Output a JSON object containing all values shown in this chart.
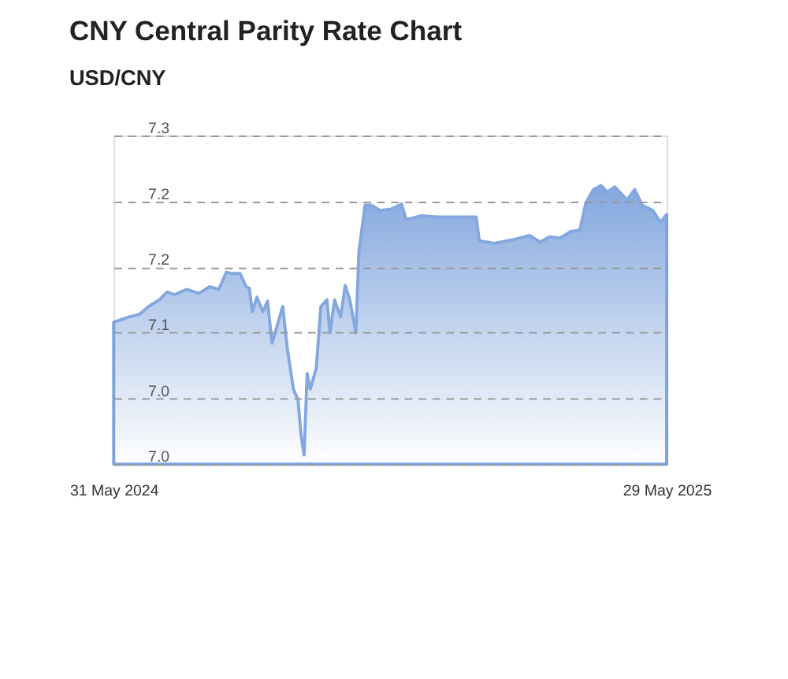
{
  "chart_data": {
    "type": "area",
    "title": "CNY Central Parity Rate Chart",
    "subtitle": "USD/CNY",
    "x": [
      "2024-05-31",
      "2024-06-10",
      "2024-06-17",
      "2024-06-23",
      "2024-06-30",
      "2024-07-05",
      "2024-07-10",
      "2024-07-18",
      "2024-07-26",
      "2024-08-02",
      "2024-08-08",
      "2024-08-13",
      "2024-08-17",
      "2024-08-22",
      "2024-08-26",
      "2024-08-28",
      "2024-08-30",
      "2024-09-02",
      "2024-09-06",
      "2024-09-09",
      "2024-09-12",
      "2024-09-16",
      "2024-09-19",
      "2024-09-22",
      "2024-09-26",
      "2024-09-29",
      "2024-10-01",
      "2024-10-03",
      "2024-10-05",
      "2024-10-07",
      "2024-10-11",
      "2024-10-14",
      "2024-10-18",
      "2024-10-20",
      "2024-10-23",
      "2024-10-27",
      "2024-10-30",
      "2024-11-02",
      "2024-11-06",
      "2024-11-08",
      "2024-11-12",
      "2024-11-16",
      "2024-11-22",
      "2024-11-29",
      "2024-12-06",
      "2024-12-09",
      "2024-12-19",
      "2024-12-29",
      "2025-01-08",
      "2025-01-24",
      "2025-01-26",
      "2025-02-05",
      "2025-02-18",
      "2025-02-28",
      "2025-03-07",
      "2025-03-13",
      "2025-03-20",
      "2025-03-27",
      "2025-04-02",
      "2025-04-06",
      "2025-04-11",
      "2025-04-16",
      "2025-04-20",
      "2025-04-25",
      "2025-05-03",
      "2025-05-08",
      "2025-05-13",
      "2025-05-20",
      "2025-05-25",
      "2025-05-29"
    ],
    "series": [
      {
        "color": "#4f83d1",
        "values": [
          7.108,
          7.112,
          7.114,
          7.12,
          7.125,
          7.131,
          7.129,
          7.133,
          7.13,
          7.135,
          7.133,
          7.146,
          7.145,
          7.145,
          7.135,
          7.134,
          7.116,
          7.127,
          7.116,
          7.124,
          7.092,
          7.108,
          7.12,
          7.088,
          7.057,
          7.049,
          7.022,
          7.007,
          7.069,
          7.057,
          7.073,
          7.12,
          7.125,
          7.1,
          7.125,
          7.112,
          7.136,
          7.125,
          7.1,
          7.162,
          7.197,
          7.197,
          7.193,
          7.194,
          7.198,
          7.186,
          7.189,
          7.188,
          7.188,
          7.188,
          7.17,
          7.168,
          7.171,
          7.174,
          7.169,
          7.173,
          7.172,
          7.177,
          7.178,
          7.199,
          7.209,
          7.212,
          7.207,
          7.211,
          7.201,
          7.209,
          7.197,
          7.193,
          7.184,
          7.19
        ]
      }
    ],
    "xlim": [
      "2024-05-31",
      "2025-05-29"
    ],
    "xticks": [
      {
        "value": "2024-05-31",
        "label": "31 May 2024"
      },
      {
        "value": "2025-05-29",
        "label": "29 May 2025"
      }
    ],
    "ylim": [
      7.0,
      7.25
    ],
    "yticks": [
      {
        "value": 7.0,
        "label": "7.0"
      },
      {
        "value": 7.05,
        "label": "7.0"
      },
      {
        "value": 7.1,
        "label": "7.1"
      },
      {
        "value": 7.15,
        "label": "7.2"
      },
      {
        "value": 7.2,
        "label": "7.2"
      },
      {
        "value": 7.25,
        "label": "7.3"
      }
    ],
    "grid": "y"
  }
}
